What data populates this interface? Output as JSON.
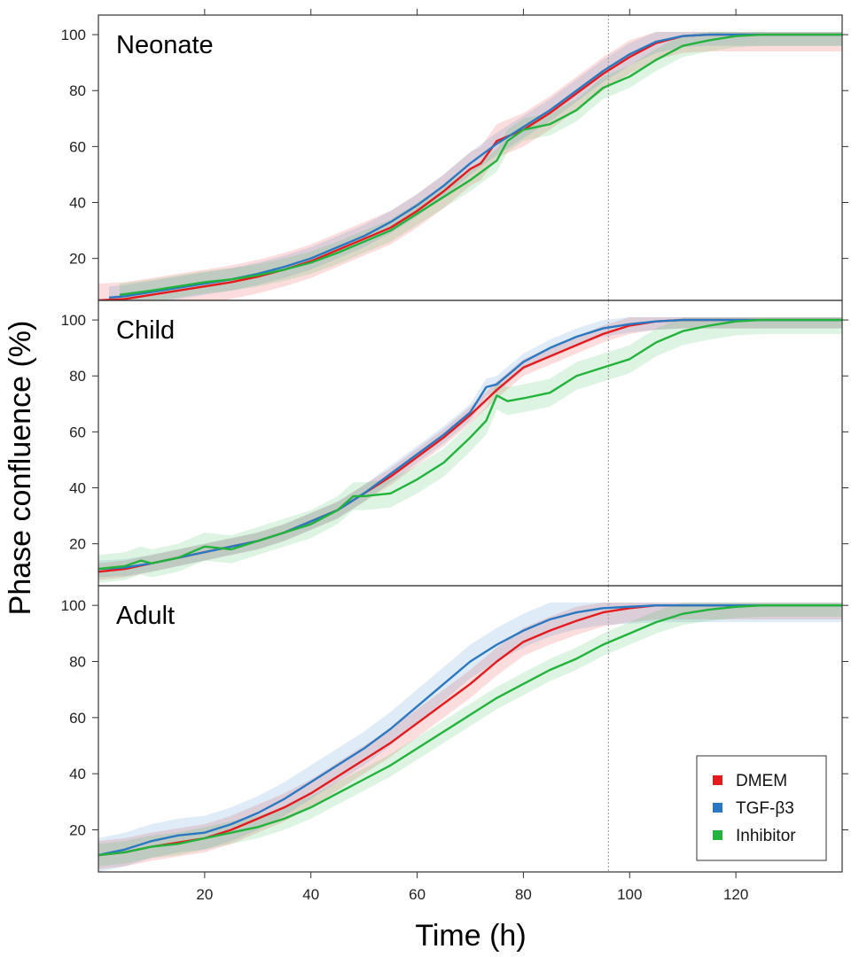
{
  "chart_data": {
    "type": "line",
    "xlabel": "Time (h)",
    "ylabel": "Phase confluence (%)",
    "xlim": [
      0,
      140
    ],
    "ylim": [
      5,
      107
    ],
    "xticks": [
      20,
      40,
      60,
      80,
      100,
      120
    ],
    "yticks": [
      20,
      40,
      60,
      80,
      100
    ],
    "vline_x": 96,
    "legend_position": "bottom-right of last panel",
    "colors": {
      "DMEM": "#e41a1c",
      "TGF-β3": "#2b78c2",
      "Inhibitor": "#22b33c"
    },
    "legend": [
      "DMEM",
      "TGF-β3",
      "Inhibitor"
    ],
    "panels": [
      {
        "label": "Neonate",
        "series": [
          {
            "name": "DMEM",
            "band": 6,
            "points": [
              [
                0,
                5
              ],
              [
                5,
                5.5
              ],
              [
                10,
                7
              ],
              [
                15,
                8.5
              ],
              [
                20,
                10
              ],
              [
                25,
                11.5
              ],
              [
                30,
                13.5
              ],
              [
                35,
                16
              ],
              [
                40,
                19
              ],
              [
                45,
                23
              ],
              [
                50,
                27
              ],
              [
                55,
                31
              ],
              [
                60,
                37
              ],
              [
                65,
                44
              ],
              [
                70,
                52
              ],
              [
                72,
                54
              ],
              [
                75,
                62
              ],
              [
                80,
                66
              ],
              [
                85,
                72
              ],
              [
                90,
                79
              ],
              [
                95,
                86
              ],
              [
                100,
                92
              ],
              [
                105,
                97
              ],
              [
                110,
                99.5
              ],
              [
                115,
                100
              ],
              [
                140,
                100
              ]
            ]
          },
          {
            "name": "TGF-β3",
            "band": 4,
            "points": [
              [
                2,
                6
              ],
              [
                5,
                6.5
              ],
              [
                10,
                8
              ],
              [
                15,
                9.5
              ],
              [
                20,
                11
              ],
              [
                25,
                12.5
              ],
              [
                30,
                14.5
              ],
              [
                35,
                17
              ],
              [
                40,
                20
              ],
              [
                45,
                24
              ],
              [
                50,
                28
              ],
              [
                55,
                33
              ],
              [
                60,
                39
              ],
              [
                65,
                46
              ],
              [
                70,
                54
              ],
              [
                75,
                61
              ],
              [
                80,
                67
              ],
              [
                85,
                73
              ],
              [
                90,
                80
              ],
              [
                95,
                87
              ],
              [
                100,
                93
              ],
              [
                105,
                97.5
              ],
              [
                110,
                99.5
              ],
              [
                115,
                100
              ],
              [
                140,
                100
              ]
            ]
          },
          {
            "name": "Inhibitor",
            "band": 4,
            "points": [
              [
                4,
                7
              ],
              [
                10,
                8.5
              ],
              [
                15,
                10
              ],
              [
                20,
                11.5
              ],
              [
                25,
                12.5
              ],
              [
                30,
                14
              ],
              [
                35,
                16
              ],
              [
                40,
                18.5
              ],
              [
                45,
                22
              ],
              [
                50,
                26
              ],
              [
                55,
                30
              ],
              [
                60,
                36
              ],
              [
                65,
                42
              ],
              [
                70,
                48
              ],
              [
                75,
                55
              ],
              [
                77,
                62
              ],
              [
                80,
                66
              ],
              [
                85,
                68
              ],
              [
                90,
                73
              ],
              [
                95,
                81
              ],
              [
                100,
                85
              ],
              [
                105,
                91
              ],
              [
                110,
                96
              ],
              [
                115,
                98
              ],
              [
                120,
                99.5
              ],
              [
                125,
                100
              ],
              [
                140,
                100
              ]
            ]
          }
        ]
      },
      {
        "label": "Child",
        "series": [
          {
            "name": "DMEM",
            "band": 3,
            "points": [
              [
                0,
                10
              ],
              [
                5,
                11
              ],
              [
                10,
                13
              ],
              [
                15,
                15
              ],
              [
                20,
                17
              ],
              [
                25,
                19
              ],
              [
                30,
                21
              ],
              [
                35,
                24
              ],
              [
                40,
                28
              ],
              [
                45,
                32
              ],
              [
                50,
                38
              ],
              [
                55,
                44
              ],
              [
                60,
                51
              ],
              [
                65,
                58
              ],
              [
                70,
                66
              ],
              [
                75,
                75
              ],
              [
                80,
                83
              ],
              [
                85,
                87
              ],
              [
                90,
                91
              ],
              [
                95,
                95
              ],
              [
                100,
                98
              ],
              [
                105,
                99.5
              ],
              [
                110,
                100
              ],
              [
                140,
                100
              ]
            ]
          },
          {
            "name": "TGF-β3",
            "band": 3,
            "points": [
              [
                0,
                11
              ],
              [
                5,
                11.5
              ],
              [
                10,
                13
              ],
              [
                15,
                15
              ],
              [
                20,
                17
              ],
              [
                25,
                19
              ],
              [
                30,
                21
              ],
              [
                35,
                24
              ],
              [
                40,
                28
              ],
              [
                45,
                32
              ],
              [
                50,
                38
              ],
              [
                55,
                45
              ],
              [
                60,
                52
              ],
              [
                65,
                59
              ],
              [
                70,
                67
              ],
              [
                73,
                76
              ],
              [
                75,
                77
              ],
              [
                80,
                85
              ],
              [
                85,
                90
              ],
              [
                90,
                94
              ],
              [
                95,
                97
              ],
              [
                100,
                98.5
              ],
              [
                105,
                99.5
              ],
              [
                110,
                100
              ],
              [
                140,
                100
              ]
            ]
          },
          {
            "name": "Inhibitor",
            "band": 5,
            "points": [
              [
                0,
                11
              ],
              [
                5,
                12
              ],
              [
                8,
                14
              ],
              [
                10,
                13
              ],
              [
                15,
                15
              ],
              [
                20,
                19
              ],
              [
                25,
                18
              ],
              [
                30,
                21
              ],
              [
                35,
                24
              ],
              [
                40,
                27
              ],
              [
                45,
                32
              ],
              [
                48,
                37
              ],
              [
                50,
                37
              ],
              [
                55,
                38
              ],
              [
                60,
                43
              ],
              [
                65,
                49
              ],
              [
                70,
                58
              ],
              [
                73,
                64
              ],
              [
                75,
                73
              ],
              [
                77,
                71
              ],
              [
                80,
                72
              ],
              [
                85,
                74
              ],
              [
                90,
                80
              ],
              [
                95,
                83
              ],
              [
                100,
                86
              ],
              [
                105,
                92
              ],
              [
                110,
                96
              ],
              [
                115,
                98
              ],
              [
                120,
                99.5
              ],
              [
                125,
                100
              ],
              [
                140,
                100
              ]
            ]
          }
        ]
      },
      {
        "label": "Adult",
        "series": [
          {
            "name": "DMEM",
            "band": 5,
            "points": [
              [
                0,
                11
              ],
              [
                5,
                12
              ],
              [
                10,
                14
              ],
              [
                15,
                15.5
              ],
              [
                20,
                17
              ],
              [
                25,
                20
              ],
              [
                30,
                24
              ],
              [
                35,
                28
              ],
              [
                40,
                33
              ],
              [
                45,
                39
              ],
              [
                50,
                45
              ],
              [
                55,
                51
              ],
              [
                60,
                58
              ],
              [
                65,
                65
              ],
              [
                70,
                72
              ],
              [
                75,
                80
              ],
              [
                80,
                87
              ],
              [
                85,
                91
              ],
              [
                90,
                94.5
              ],
              [
                95,
                97.5
              ],
              [
                100,
                99
              ],
              [
                105,
                100
              ],
              [
                140,
                100
              ]
            ]
          },
          {
            "name": "TGF-β3",
            "band": 6,
            "points": [
              [
                0,
                11
              ],
              [
                5,
                13
              ],
              [
                10,
                16
              ],
              [
                15,
                18
              ],
              [
                20,
                19
              ],
              [
                25,
                22
              ],
              [
                30,
                26
              ],
              [
                35,
                31
              ],
              [
                40,
                37
              ],
              [
                45,
                43
              ],
              [
                50,
                49
              ],
              [
                55,
                56
              ],
              [
                60,
                64
              ],
              [
                65,
                72
              ],
              [
                70,
                80
              ],
              [
                75,
                86
              ],
              [
                80,
                91
              ],
              [
                85,
                95
              ],
              [
                90,
                97.5
              ],
              [
                95,
                99
              ],
              [
                100,
                99.5
              ],
              [
                105,
                100
              ],
              [
                140,
                100
              ]
            ]
          },
          {
            "name": "Inhibitor",
            "band": 4,
            "points": [
              [
                0,
                11
              ],
              [
                5,
                12
              ],
              [
                10,
                14
              ],
              [
                15,
                15
              ],
              [
                20,
                17
              ],
              [
                25,
                19
              ],
              [
                30,
                21
              ],
              [
                35,
                24
              ],
              [
                40,
                28
              ],
              [
                45,
                33
              ],
              [
                50,
                38
              ],
              [
                55,
                43
              ],
              [
                60,
                49
              ],
              [
                65,
                55
              ],
              [
                70,
                61
              ],
              [
                75,
                67
              ],
              [
                80,
                72
              ],
              [
                85,
                77
              ],
              [
                90,
                81
              ],
              [
                95,
                86
              ],
              [
                100,
                90
              ],
              [
                105,
                94
              ],
              [
                110,
                97
              ],
              [
                115,
                98.5
              ],
              [
                120,
                99.5
              ],
              [
                125,
                100
              ],
              [
                140,
                100
              ]
            ]
          }
        ]
      }
    ]
  }
}
